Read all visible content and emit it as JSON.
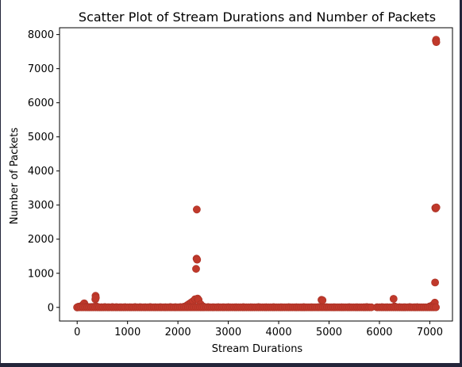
{
  "chart_data": {
    "type": "scatter",
    "title": "Scatter Plot of Stream Durations and Number of Packets",
    "xlabel": "Stream Durations",
    "ylabel": "Number of Packets",
    "xlim": [
      -350,
      7450
    ],
    "ylim": [
      -400,
      8200
    ],
    "xticks": [
      0,
      1000,
      2000,
      3000,
      4000,
      5000,
      6000,
      7000
    ],
    "yticks": [
      0,
      1000,
      2000,
      3000,
      4000,
      5000,
      6000,
      7000,
      8000
    ],
    "grid": false,
    "color": "#c0392b",
    "points": [
      [
        0,
        0
      ],
      [
        10,
        5
      ],
      [
        25,
        20
      ],
      [
        40,
        10
      ],
      [
        60,
        30
      ],
      [
        80,
        15
      ],
      [
        100,
        40
      ],
      [
        120,
        80
      ],
      [
        140,
        120
      ],
      [
        160,
        60
      ],
      [
        180,
        20
      ],
      [
        200,
        10
      ],
      [
        230,
        5
      ],
      [
        260,
        8
      ],
      [
        290,
        12
      ],
      [
        330,
        18
      ],
      [
        360,
        240
      ],
      [
        365,
        340
      ],
      [
        370,
        280
      ],
      [
        380,
        30
      ],
      [
        420,
        6
      ],
      [
        480,
        4
      ],
      [
        550,
        8
      ],
      [
        620,
        5
      ],
      [
        700,
        10
      ],
      [
        780,
        6
      ],
      [
        860,
        4
      ],
      [
        950,
        7
      ],
      [
        1050,
        5
      ],
      [
        1150,
        8
      ],
      [
        1250,
        6
      ],
      [
        1350,
        4
      ],
      [
        1450,
        9
      ],
      [
        1550,
        5
      ],
      [
        1650,
        7
      ],
      [
        1750,
        4
      ],
      [
        1850,
        10
      ],
      [
        1950,
        6
      ],
      [
        2050,
        8
      ],
      [
        2120,
        20
      ],
      [
        2180,
        60
      ],
      [
        2220,
        100
      ],
      [
        2260,
        140
      ],
      [
        2300,
        180
      ],
      [
        2340,
        240
      ],
      [
        2360,
        1130
      ],
      [
        2370,
        1430
      ],
      [
        2375,
        2870
      ],
      [
        2380,
        1400
      ],
      [
        2390,
        260
      ],
      [
        2410,
        220
      ],
      [
        2450,
        90
      ],
      [
        2500,
        30
      ],
      [
        2600,
        8
      ],
      [
        2700,
        5
      ],
      [
        2800,
        6
      ],
      [
        2900,
        4
      ],
      [
        3000,
        7
      ],
      [
        3150,
        5
      ],
      [
        3300,
        6
      ],
      [
        3450,
        4
      ],
      [
        3600,
        8
      ],
      [
        3750,
        5
      ],
      [
        3900,
        6
      ],
      [
        4050,
        4
      ],
      [
        4200,
        7
      ],
      [
        4350,
        5
      ],
      [
        4500,
        6
      ],
      [
        4650,
        4
      ],
      [
        4800,
        8
      ],
      [
        4850,
        220
      ],
      [
        4870,
        210
      ],
      [
        4950,
        6
      ],
      [
        5100,
        5
      ],
      [
        5250,
        4
      ],
      [
        5400,
        6
      ],
      [
        5550,
        5
      ],
      [
        5700,
        4
      ],
      [
        5750,
        8
      ],
      [
        5950,
        5
      ],
      [
        6050,
        6
      ],
      [
        6150,
        5
      ],
      [
        6280,
        250
      ],
      [
        6300,
        30
      ],
      [
        6400,
        6
      ],
      [
        6500,
        5
      ],
      [
        6600,
        8
      ],
      [
        6700,
        4
      ],
      [
        6750,
        6
      ],
      [
        7000,
        30
      ],
      [
        7050,
        60
      ],
      [
        7100,
        140
      ],
      [
        7105,
        730
      ],
      [
        7110,
        2920
      ],
      [
        7115,
        2900
      ],
      [
        7120,
        7820
      ],
      [
        7125,
        7850
      ],
      [
        7128,
        7780
      ],
      [
        7130,
        2930
      ]
    ]
  }
}
